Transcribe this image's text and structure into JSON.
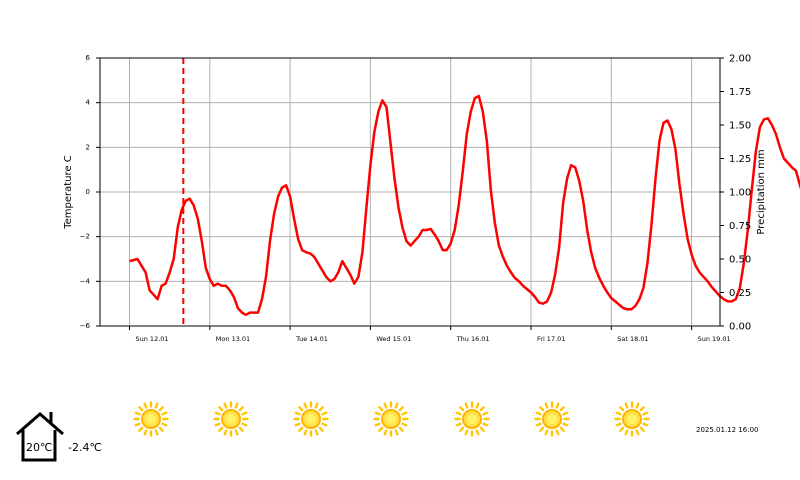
{
  "chart_data": {
    "type": "line",
    "xlabel": "",
    "ylabel_left": "Temperature C",
    "ylabel_right": "Precipitation mm",
    "ylim_left": [
      -6,
      6
    ],
    "ylim_right": [
      0,
      2
    ],
    "yticks_left": [
      "6",
      "4",
      "2",
      "0",
      "−2",
      "−4",
      "−6"
    ],
    "yticks_right": [
      "2.00",
      "1.75",
      "1.50",
      "1.25",
      "1.00",
      "0.75",
      "0.50",
      "0.25",
      "0.00"
    ],
    "xticks": [
      "Sun 12.01",
      "Mon 13.01",
      "Tue 14.01",
      "Wed 15.01",
      "Thu 16.01",
      "Fri 17.01",
      "Sat 18.01",
      "Sun 19.01"
    ],
    "grid": true,
    "now_marker_day": 0.67,
    "series": [
      {
        "color": "#ff0000",
        "points": [
          [
            0,
            -3.1
          ],
          [
            0.1,
            -3.0
          ],
          [
            0.15,
            -3.3
          ],
          [
            0.2,
            -3.6
          ],
          [
            0.25,
            -4.4
          ],
          [
            0.3,
            -4.6
          ],
          [
            0.35,
            -4.8
          ],
          [
            0.4,
            -4.2
          ],
          [
            0.45,
            -4.1
          ],
          [
            0.5,
            -3.6
          ],
          [
            0.55,
            -3.0
          ],
          [
            0.6,
            -1.6
          ],
          [
            0.65,
            -0.8
          ],
          [
            0.7,
            -0.4
          ],
          [
            0.75,
            -0.3
          ],
          [
            0.8,
            -0.6
          ],
          [
            0.85,
            -1.2
          ],
          [
            0.9,
            -2.2
          ],
          [
            0.95,
            -3.4
          ],
          [
            1.0,
            -3.9
          ],
          [
            1.05,
            -4.2
          ],
          [
            1.1,
            -4.1
          ],
          [
            1.15,
            -4.2
          ],
          [
            1.2,
            -4.2
          ],
          [
            1.25,
            -4.4
          ],
          [
            1.3,
            -4.7
          ],
          [
            1.35,
            -5.2
          ],
          [
            1.4,
            -5.4
          ],
          [
            1.45,
            -5.5
          ],
          [
            1.5,
            -5.4
          ],
          [
            1.55,
            -5.4
          ],
          [
            1.6,
            -5.4
          ],
          [
            1.65,
            -4.8
          ],
          [
            1.7,
            -3.8
          ],
          [
            1.75,
            -2.2
          ],
          [
            1.8,
            -1.0
          ],
          [
            1.85,
            -0.2
          ],
          [
            1.9,
            0.2
          ],
          [
            1.95,
            0.3
          ],
          [
            2.0,
            -0.2
          ],
          [
            2.05,
            -1.2
          ],
          [
            2.1,
            -2.1
          ],
          [
            2.15,
            -2.6
          ],
          [
            2.2,
            -2.7
          ],
          [
            2.25,
            -2.75
          ],
          [
            2.3,
            -2.9
          ],
          [
            2.35,
            -3.2
          ],
          [
            2.4,
            -3.5
          ],
          [
            2.45,
            -3.8
          ],
          [
            2.5,
            -4.0
          ],
          [
            2.55,
            -3.9
          ],
          [
            2.6,
            -3.6
          ],
          [
            2.65,
            -3.1
          ],
          [
            2.7,
            -3.4
          ],
          [
            2.75,
            -3.7
          ],
          [
            2.8,
            -4.1
          ],
          [
            2.85,
            -3.8
          ],
          [
            2.9,
            -2.7
          ],
          [
            2.95,
            -0.7
          ],
          [
            3.0,
            1.2
          ],
          [
            3.05,
            2.7
          ],
          [
            3.1,
            3.6
          ],
          [
            3.15,
            4.1
          ],
          [
            3.2,
            3.8
          ],
          [
            3.25,
            2.2
          ],
          [
            3.3,
            0.6
          ],
          [
            3.35,
            -0.7
          ],
          [
            3.4,
            -1.6
          ],
          [
            3.45,
            -2.2
          ],
          [
            3.5,
            -2.4
          ],
          [
            3.55,
            -2.2
          ],
          [
            3.6,
            -2.0
          ],
          [
            3.65,
            -1.7
          ],
          [
            3.7,
            -1.7
          ],
          [
            3.75,
            -1.65
          ],
          [
            3.8,
            -1.9
          ],
          [
            3.85,
            -2.2
          ],
          [
            3.9,
            -2.6
          ],
          [
            3.95,
            -2.6
          ],
          [
            4.0,
            -2.3
          ],
          [
            4.05,
            -1.7
          ],
          [
            4.1,
            -0.6
          ],
          [
            4.15,
            0.9
          ],
          [
            4.2,
            2.6
          ],
          [
            4.25,
            3.6
          ],
          [
            4.3,
            4.2
          ],
          [
            4.35,
            4.3
          ],
          [
            4.4,
            3.6
          ],
          [
            4.45,
            2.3
          ],
          [
            4.5,
            0.1
          ],
          [
            4.55,
            -1.4
          ],
          [
            4.6,
            -2.4
          ],
          [
            4.65,
            -2.9
          ],
          [
            4.7,
            -3.3
          ],
          [
            4.75,
            -3.6
          ],
          [
            4.8,
            -3.85
          ],
          [
            4.85,
            -4.0
          ],
          [
            4.9,
            -4.2
          ],
          [
            4.95,
            -4.35
          ],
          [
            5.0,
            -4.5
          ],
          [
            5.05,
            -4.7
          ],
          [
            5.1,
            -4.95
          ],
          [
            5.15,
            -5.0
          ],
          [
            5.2,
            -4.9
          ],
          [
            5.25,
            -4.5
          ],
          [
            5.3,
            -3.7
          ],
          [
            5.35,
            -2.5
          ],
          [
            5.4,
            -0.5
          ],
          [
            5.45,
            0.6
          ],
          [
            5.5,
            1.2
          ],
          [
            5.55,
            1.1
          ],
          [
            5.6,
            0.5
          ],
          [
            5.65,
            -0.4
          ],
          [
            5.7,
            -1.7
          ],
          [
            5.75,
            -2.7
          ],
          [
            5.8,
            -3.4
          ],
          [
            5.85,
            -3.85
          ],
          [
            5.9,
            -4.2
          ],
          [
            5.95,
            -4.5
          ],
          [
            6.0,
            -4.75
          ],
          [
            6.05,
            -4.9
          ],
          [
            6.1,
            -5.05
          ],
          [
            6.15,
            -5.2
          ],
          [
            6.2,
            -5.25
          ],
          [
            6.25,
            -5.25
          ],
          [
            6.3,
            -5.1
          ],
          [
            6.35,
            -4.8
          ],
          [
            6.4,
            -4.3
          ],
          [
            6.45,
            -3.2
          ],
          [
            6.5,
            -1.5
          ],
          [
            6.55,
            0.6
          ],
          [
            6.6,
            2.3
          ],
          [
            6.65,
            3.1
          ],
          [
            6.7,
            3.2
          ],
          [
            6.75,
            2.8
          ],
          [
            6.8,
            1.9
          ],
          [
            6.85,
            0.3
          ],
          [
            6.9,
            -1.0
          ],
          [
            6.95,
            -2.1
          ],
          [
            7.0,
            -2.8
          ],
          [
            7.05,
            -3.3
          ],
          [
            7.1,
            -3.6
          ],
          [
            7.15,
            -3.8
          ],
          [
            7.2,
            -4.0
          ],
          [
            7.25,
            -4.25
          ],
          [
            7.3,
            -4.45
          ],
          [
            7.35,
            -4.65
          ],
          [
            7.4,
            -4.8
          ],
          [
            7.45,
            -4.9
          ],
          [
            7.5,
            -4.9
          ],
          [
            7.55,
            -4.8
          ],
          [
            7.6,
            -4.3
          ],
          [
            7.65,
            -3.2
          ],
          [
            7.7,
            -1.7
          ],
          [
            7.75,
            0.1
          ],
          [
            7.8,
            1.8
          ],
          [
            7.85,
            2.9
          ],
          [
            7.9,
            3.25
          ],
          [
            7.95,
            3.3
          ],
          [
            8.0,
            3.0
          ],
          [
            8.05,
            2.6
          ],
          [
            8.1,
            2.0
          ],
          [
            8.15,
            1.5
          ],
          [
            8.2,
            1.3
          ],
          [
            8.25,
            1.1
          ],
          [
            8.3,
            0.95
          ],
          [
            8.35,
            0.3
          ],
          [
            8.4,
            -0.3
          ],
          [
            8.45,
            -0.6
          ]
        ]
      }
    ]
  },
  "weather_icons": [
    "sun-icon",
    "sun-icon",
    "sun-icon",
    "sun-icon",
    "sun-icon",
    "sun-icon",
    "sun-icon"
  ],
  "indoor_temp": "20℃",
  "outdoor_temp": "-2.4℃",
  "timestamp": "2025.01.12 16:00"
}
